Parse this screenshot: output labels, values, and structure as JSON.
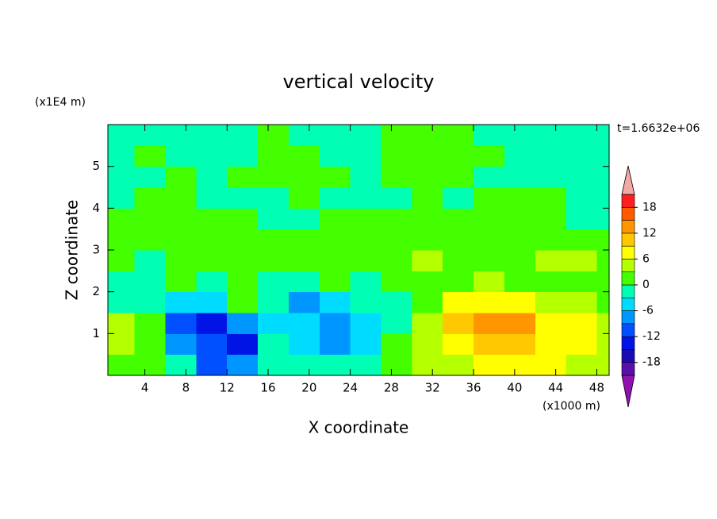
{
  "chart_data": {
    "type": "contour",
    "title": "vertical velocity",
    "xlabel": "X coordinate",
    "ylabel": "Z coordinate",
    "x_unit": "(x1000 m)",
    "y_unit": "(x1E4 m)",
    "time_label": "t=1.6632e+06",
    "xlim": [
      0.4,
      49.2
    ],
    "ylim": [
      0,
      6
    ],
    "xticks": [
      4,
      8,
      12,
      16,
      20,
      24,
      28,
      32,
      36,
      40,
      44,
      48
    ],
    "yticks": [
      1,
      2,
      3,
      4,
      5
    ],
    "x": [
      1.5,
      4.5,
      7.5,
      10.5,
      13.5,
      16.5,
      19.5,
      22.5,
      25.5,
      28.5,
      31.5,
      34.5,
      37.5,
      40.5,
      43.5,
      46.5,
      49.5
    ],
    "y": [
      0.25,
      0.75,
      1.25,
      1.75,
      2.25,
      2.75,
      3.25,
      3.75,
      4.25,
      4.75,
      5.25,
      5.75
    ],
    "values": [
      [
        2,
        1,
        -2,
        -10,
        -9,
        -1,
        -2,
        -1,
        -1,
        1,
        3,
        5,
        7,
        7,
        6,
        5,
        5
      ],
      [
        4,
        2,
        -7,
        -11,
        -13,
        -2,
        -4,
        -7,
        -5,
        0.5,
        3,
        7,
        10,
        11,
        8,
        6,
        5
      ],
      [
        3,
        0.5,
        -10,
        -13,
        -8,
        -4,
        -6,
        -8,
        -6,
        -1,
        4,
        9,
        13,
        12,
        8,
        6,
        5
      ],
      [
        -1,
        -3,
        -6,
        -5,
        2,
        -2,
        -7,
        -5,
        -3,
        -1,
        2,
        6,
        8,
        7,
        5,
        4,
        2
      ],
      [
        -2,
        -3,
        1,
        -2,
        1,
        -1,
        -2,
        2,
        -2,
        0.5,
        1,
        2,
        3,
        2,
        1,
        1,
        0.5
      ],
      [
        1,
        -1,
        1,
        1,
        1,
        1,
        1,
        1,
        1,
        2,
        4,
        1,
        1,
        2,
        3,
        4,
        2
      ],
      [
        1,
        1,
        2,
        1,
        1,
        1,
        1,
        2,
        1,
        1,
        1,
        1,
        1,
        1,
        1,
        1,
        1
      ],
      [
        1,
        1,
        1,
        2,
        1,
        -1,
        -1,
        1,
        1,
        1,
        1,
        1,
        1,
        1,
        1,
        -1,
        -1
      ],
      [
        -1,
        1,
        1,
        -1,
        -1,
        -1,
        1,
        -1,
        -1,
        -1,
        1,
        -1,
        1,
        1,
        1,
        -1,
        -1
      ],
      [
        -1,
        -1,
        1,
        -1,
        1,
        1,
        1,
        1,
        -1,
        1,
        1,
        1,
        -1,
        -1,
        -1,
        -1,
        -1
      ],
      [
        -1,
        1,
        -1,
        -1,
        -1,
        1,
        1,
        -1,
        -1,
        1,
        1,
        1,
        1,
        -1,
        -1,
        -1,
        -1
      ],
      [
        -1,
        -1,
        -1,
        -1,
        -1,
        1,
        -1,
        -1,
        -1,
        1,
        1,
        1,
        -1,
        -1,
        -1,
        -1,
        -1
      ]
    ],
    "levels": [
      -21,
      -18,
      -15,
      -12,
      -9,
      -6,
      -3,
      0,
      3,
      6,
      9,
      12,
      15,
      18,
      21
    ],
    "colors": [
      "#5a10a8",
      "#1a0ab4",
      "#0014e6",
      "#0050ff",
      "#0096ff",
      "#00dcff",
      "#00ffb4",
      "#44ff00",
      "#b4ff00",
      "#ffff00",
      "#ffc800",
      "#ff9600",
      "#ff5a00",
      "#ff1e1e"
    ],
    "over_color": "#f4a8a8",
    "under_color": "#9010b0",
    "colorbar_ticks": [
      -18,
      -12,
      -6,
      0,
      6,
      12,
      18
    ]
  }
}
